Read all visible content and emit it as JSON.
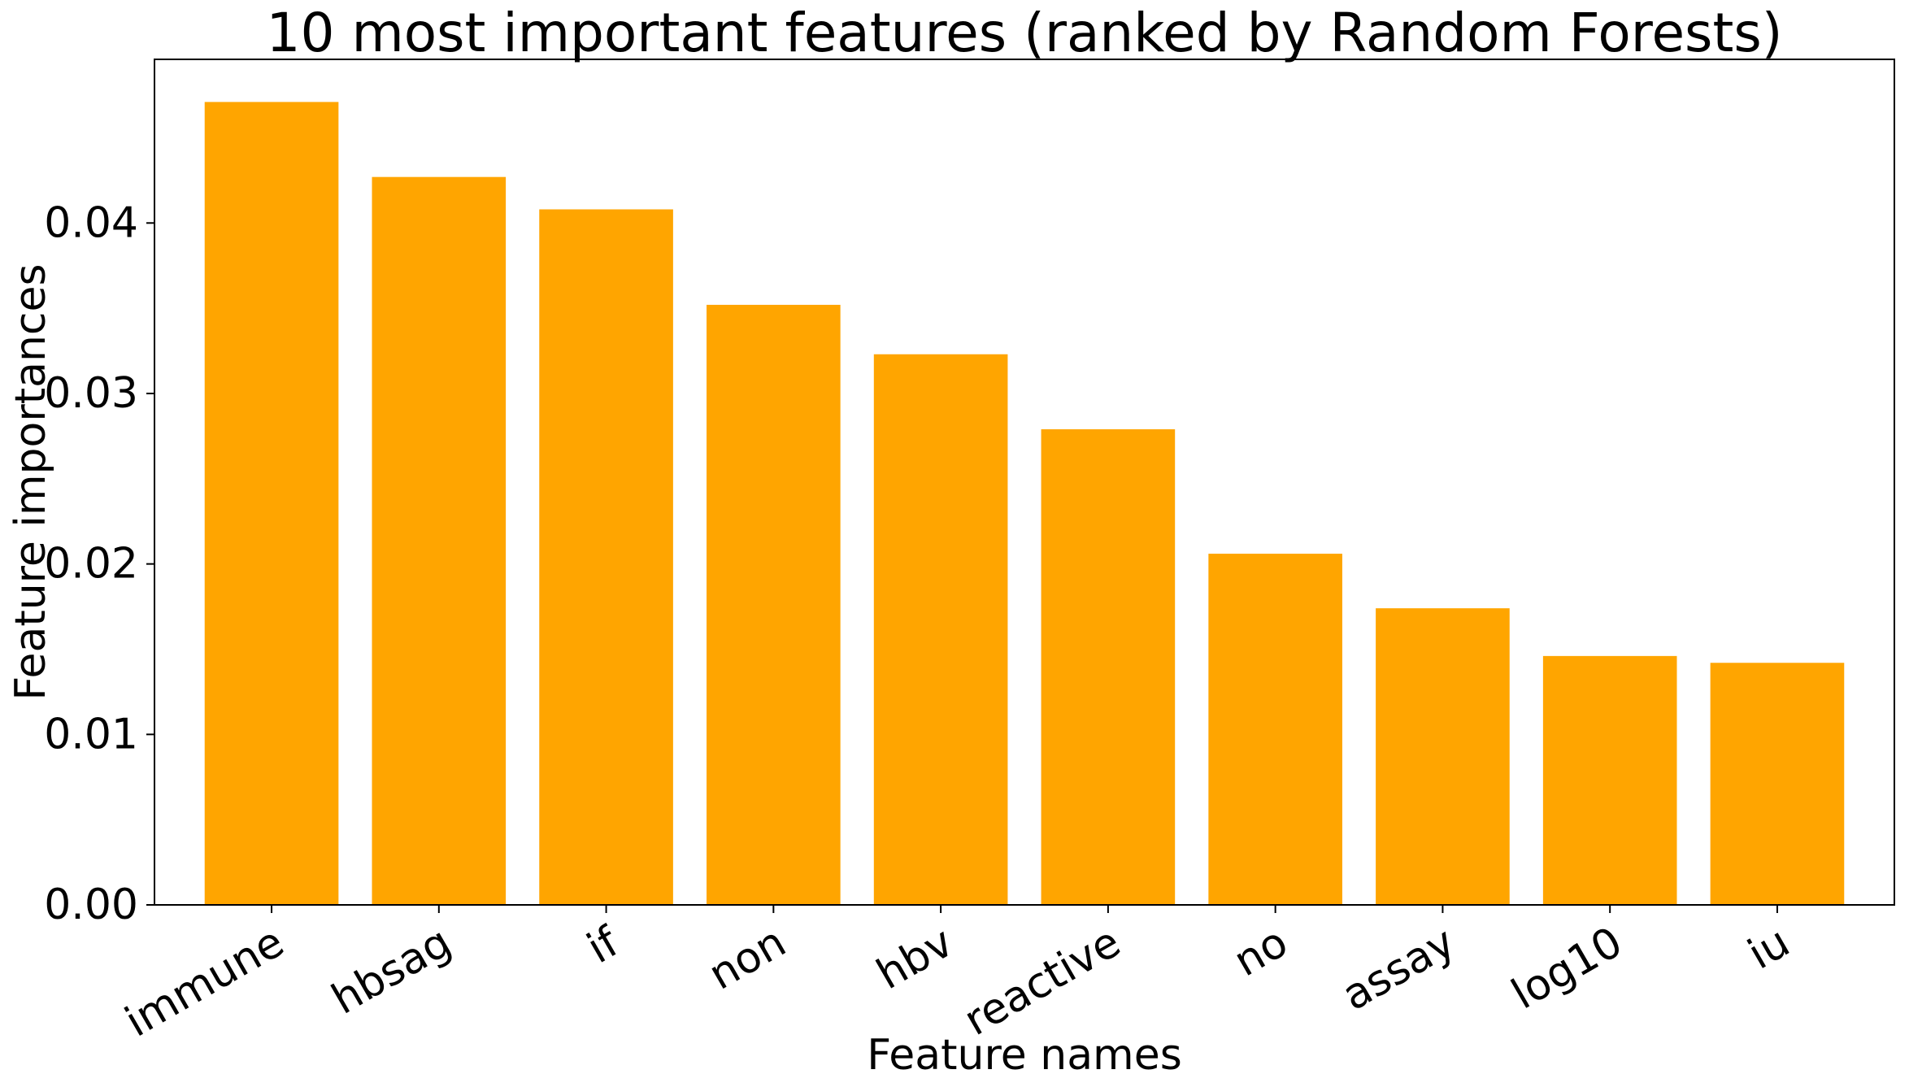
{
  "chart_data": {
    "type": "bar",
    "title": "10 most important features (ranked by Random Forests)",
    "xlabel": "Feature names",
    "ylabel": "Feature importances",
    "categories": [
      "immune",
      "hbsag",
      "if",
      "non",
      "hbv",
      "reactive",
      "no",
      "assay",
      "log10",
      "iu"
    ],
    "values": [
      0.0471,
      0.0427,
      0.0408,
      0.0352,
      0.0323,
      0.0279,
      0.0206,
      0.0174,
      0.0146,
      0.0142
    ],
    "ylim": [
      0,
      0.0496
    ],
    "yticks": [
      0.0,
      0.01,
      0.02,
      0.03,
      0.04
    ],
    "ytick_labels": [
      "0.00",
      "0.01",
      "0.02",
      "0.03",
      "0.04"
    ],
    "xtick_rotation_deg": 30,
    "grid": false,
    "legend": "none",
    "bar_color": "#FFA500"
  }
}
